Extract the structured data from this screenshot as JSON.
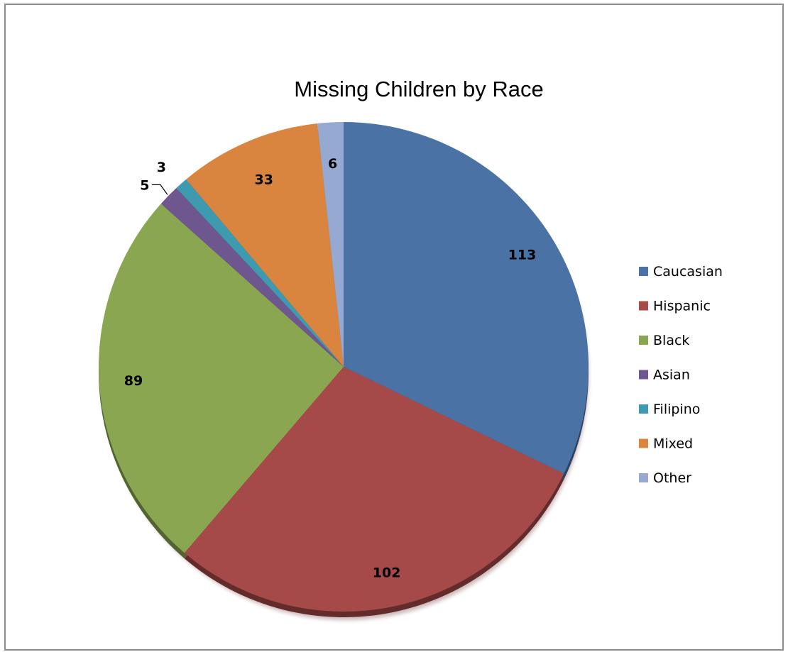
{
  "chart_data": {
    "type": "pie",
    "title": "Missing Children by Race",
    "categories": [
      "Caucasian",
      "Hispanic",
      "Black",
      "Asian",
      "Filipino",
      "Mixed",
      "Other"
    ],
    "values": [
      113,
      102,
      89,
      5,
      3,
      33,
      6
    ],
    "colors": [
      "#4A72A5",
      "#A54A48",
      "#8AA650",
      "#6E568E",
      "#3D9AAF",
      "#D9843F",
      "#95A9D2"
    ],
    "legend_position": "right",
    "data_labels": true,
    "style": "3D"
  }
}
